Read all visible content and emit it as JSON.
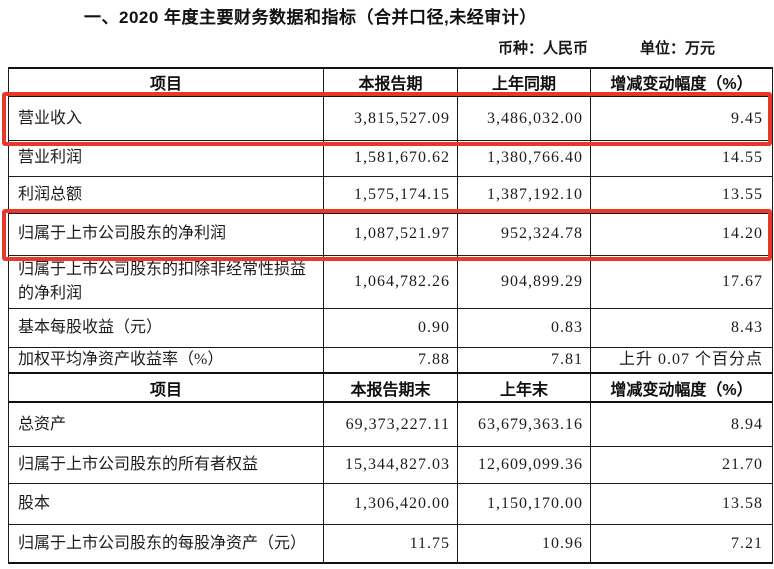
{
  "title": "一、2020 年度主要财务数据和指标（合并口径,未经审计）",
  "meta": {
    "currency_label": "币种：人民币",
    "unit_label": "单位：万元"
  },
  "colors": {
    "highlight_red": "#e7392b",
    "border_black": "#1a1a1a",
    "text": "#1c1c1c"
  },
  "highlights": [
    {
      "row": "营业收入"
    },
    {
      "row": "归属于上市公司股东的净利润"
    }
  ],
  "table": {
    "sections": [
      {
        "header": [
          "项目",
          "本报告期",
          "上年同期",
          "增减变动幅度（%）"
        ],
        "rows": [
          {
            "cells": [
              "营业收入",
              "3,815,527.09",
              "3,486,032.00",
              "9.45"
            ],
            "highlighted": true
          },
          {
            "cells": [
              "营业利润",
              "1,581,670.62",
              "1,380,766.40",
              "14.55"
            ],
            "highlighted": false
          },
          {
            "cells": [
              "利润总额",
              "1,575,174.15",
              "1,387,192.10",
              "13.55"
            ],
            "highlighted": false
          },
          {
            "cells": [
              "归属于上市公司股东的净利润",
              "1,087,521.97",
              "952,324.78",
              "14.20"
            ],
            "highlighted": true
          },
          {
            "cells": [
              "归属于上市公司股东的扣除非经常性损益的净利润",
              "1,064,782.26",
              "904,899.29",
              "17.67"
            ],
            "highlighted": false
          },
          {
            "cells": [
              "基本每股收益（元）",
              "0.90",
              "0.83",
              "8.43"
            ],
            "highlighted": false
          },
          {
            "cells": [
              "加权平均净资产收益率（%）",
              "7.88",
              "7.81",
              "上升 0.07 个百分点"
            ],
            "highlighted": false
          }
        ]
      },
      {
        "header": [
          "项目",
          "本报告期末",
          "上年末",
          "增减变动幅度（%）"
        ],
        "rows": [
          {
            "cells": [
              "总资产",
              "69,373,227.11",
              "63,679,363.16",
              "8.94"
            ],
            "highlighted": false
          },
          {
            "cells": [
              "归属于上市公司股东的所有者权益",
              "15,344,827.03",
              "12,609,099.36",
              "21.70"
            ],
            "highlighted": false
          },
          {
            "cells": [
              "股本",
              "1,306,420.00",
              "1,150,170.00",
              "13.58"
            ],
            "highlighted": false
          },
          {
            "cells": [
              "归属于上市公司股东的每股净资产（元）",
              "11.75",
              "10.96",
              "7.21"
            ],
            "highlighted": false
          }
        ]
      }
    ]
  }
}
